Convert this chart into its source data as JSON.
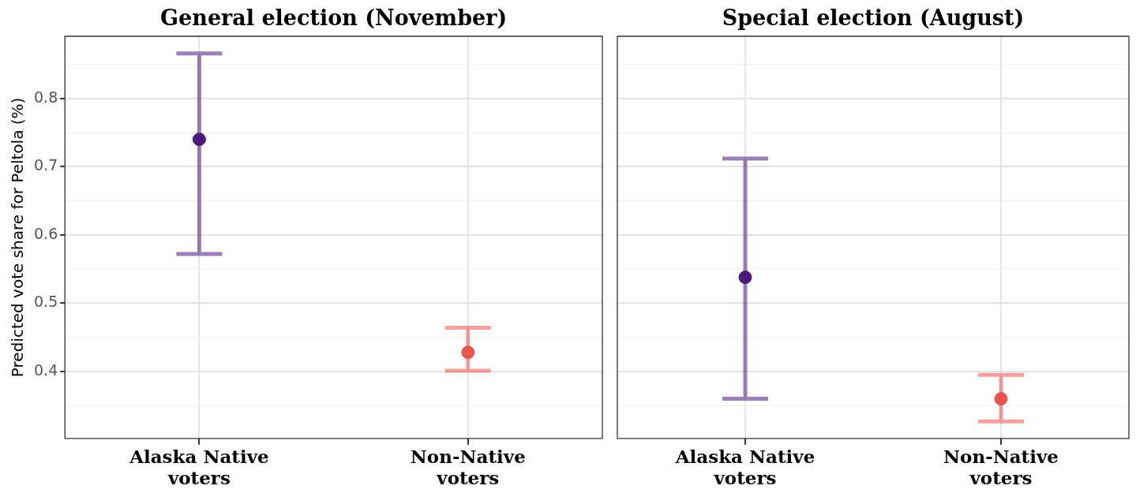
{
  "chart_data": [
    {
      "type": "scatter",
      "title": "General election (November)",
      "ylabel": "Predicted vote share for Peltola (%)",
      "categories": [
        "Alaska Native voters",
        "Non-Native voters"
      ],
      "values": [
        0.74,
        0.428
      ],
      "colors": [
        "#4b1a7a",
        "#e8544e"
      ],
      "errors": [
        [
          0.572,
          0.866
        ],
        [
          0.401,
          0.464
        ]
      ],
      "ylim": [
        0.302,
        0.891
      ],
      "yticks": [
        {
          "value": 0.35,
          "label": null
        },
        0.4,
        {
          "value": 0.45,
          "label": null
        },
        0.5,
        {
          "value": 0.55,
          "label": null
        },
        0.6,
        {
          "value": 0.65,
          "label": null
        },
        0.7,
        {
          "value": 0.75,
          "label": null
        },
        0.8,
        {
          "value": 0.85,
          "label": null
        }
      ],
      "grid": true,
      "legend": false,
      "marker": "circle"
    },
    {
      "type": "scatter",
      "title": "Special election (August)",
      "categories": [
        "Alaska Native voters",
        "Non-Native voters"
      ],
      "values": [
        0.538,
        0.36
      ],
      "colors": [
        "#4b1a7a",
        "#e8544e"
      ],
      "errors": [
        [
          0.36,
          0.712
        ],
        [
          0.327,
          0.395
        ]
      ],
      "ylim": [
        0.302,
        0.891
      ],
      "yticks": [
        {
          "value": 0.35,
          "label": null
        },
        0.4,
        {
          "value": 0.45,
          "label": null
        },
        0.5,
        {
          "value": 0.55,
          "label": null
        },
        0.6,
        {
          "value": 0.65,
          "label": null
        },
        0.7,
        {
          "value": 0.75,
          "label": null
        },
        0.8,
        {
          "value": 0.85,
          "label": null
        }
      ],
      "grid": true,
      "legend": false,
      "marker": "circle",
      "tick_labels": "x"
    }
  ]
}
